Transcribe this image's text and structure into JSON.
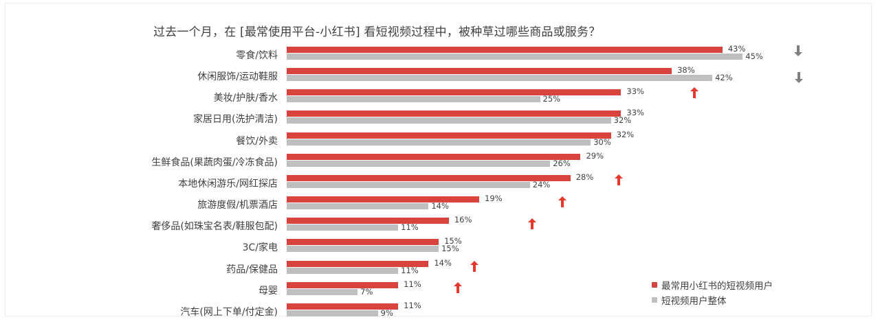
{
  "chart_data": {
    "type": "bar",
    "orientation": "horizontal",
    "title": "过去一个月，在 [最常使用平台-小红书] 看短视频过程中，被种草过哪些商品或服务？",
    "xlabel": "",
    "ylabel": "",
    "grid": false,
    "legend_position": "bottom-right",
    "categories": [
      "零食/饮料",
      "休闲服饰/运动鞋服",
      "美妆/护肤/香水",
      "家居日用(洗护清洁)",
      "餐饮/外卖",
      "生鲜食品(果蔬肉蛋/冷冻食品)",
      "本地休闲游乐/网红探店",
      "旅游度假/机票酒店",
      "奢侈品(如珠宝名表/鞋服包配)",
      "3C/家电",
      "药品/保健品",
      "母婴",
      "汽车(网上下单/付定金)"
    ],
    "series": [
      {
        "name": "最常用小红书的短视频用户",
        "color": "#d9433d",
        "values": [
          43,
          38,
          33,
          33,
          32,
          29,
          28,
          19,
          16,
          15,
          14,
          11,
          11
        ],
        "labels": [
          "43%",
          "38%",
          "33%",
          "33%",
          "32%",
          "29%",
          "28%",
          "19%",
          "16%",
          "15%",
          "14%",
          "11%",
          "11%"
        ]
      },
      {
        "name": "短视频用户整体",
        "color": "#bfbfbf",
        "values": [
          45,
          42,
          25,
          32,
          30,
          26,
          24,
          14,
          11,
          15,
          11,
          7,
          9
        ],
        "labels": [
          "45%",
          "42%",
          "25%",
          "32%",
          "30%",
          "26%",
          "24%",
          "14%",
          "11%",
          "15%",
          "11%",
          "7%",
          "9%"
        ]
      }
    ],
    "annotations": [
      {
        "category_index": 0,
        "type": "arrow-down",
        "color": "#7f7f7f"
      },
      {
        "category_index": 1,
        "type": "arrow-down",
        "color": "#7f7f7f"
      },
      {
        "category_index": 2,
        "type": "arrow-up",
        "color": "#e8372c"
      },
      {
        "category_index": 6,
        "type": "arrow-up",
        "color": "#e8372c"
      },
      {
        "category_index": 7,
        "type": "arrow-up",
        "color": "#e8372c"
      },
      {
        "category_index": 8,
        "type": "arrow-up",
        "color": "#e8372c"
      },
      {
        "category_index": 10,
        "type": "arrow-up",
        "color": "#e8372c"
      },
      {
        "category_index": 11,
        "type": "arrow-up",
        "color": "#e8372c"
      }
    ],
    "xlim": [
      0,
      50
    ]
  },
  "legend": {
    "items": [
      {
        "label": "最常用小红书的短视频用户",
        "color": "#d9433d"
      },
      {
        "label": "短视频用户整体",
        "color": "#bfbfbf"
      }
    ]
  }
}
